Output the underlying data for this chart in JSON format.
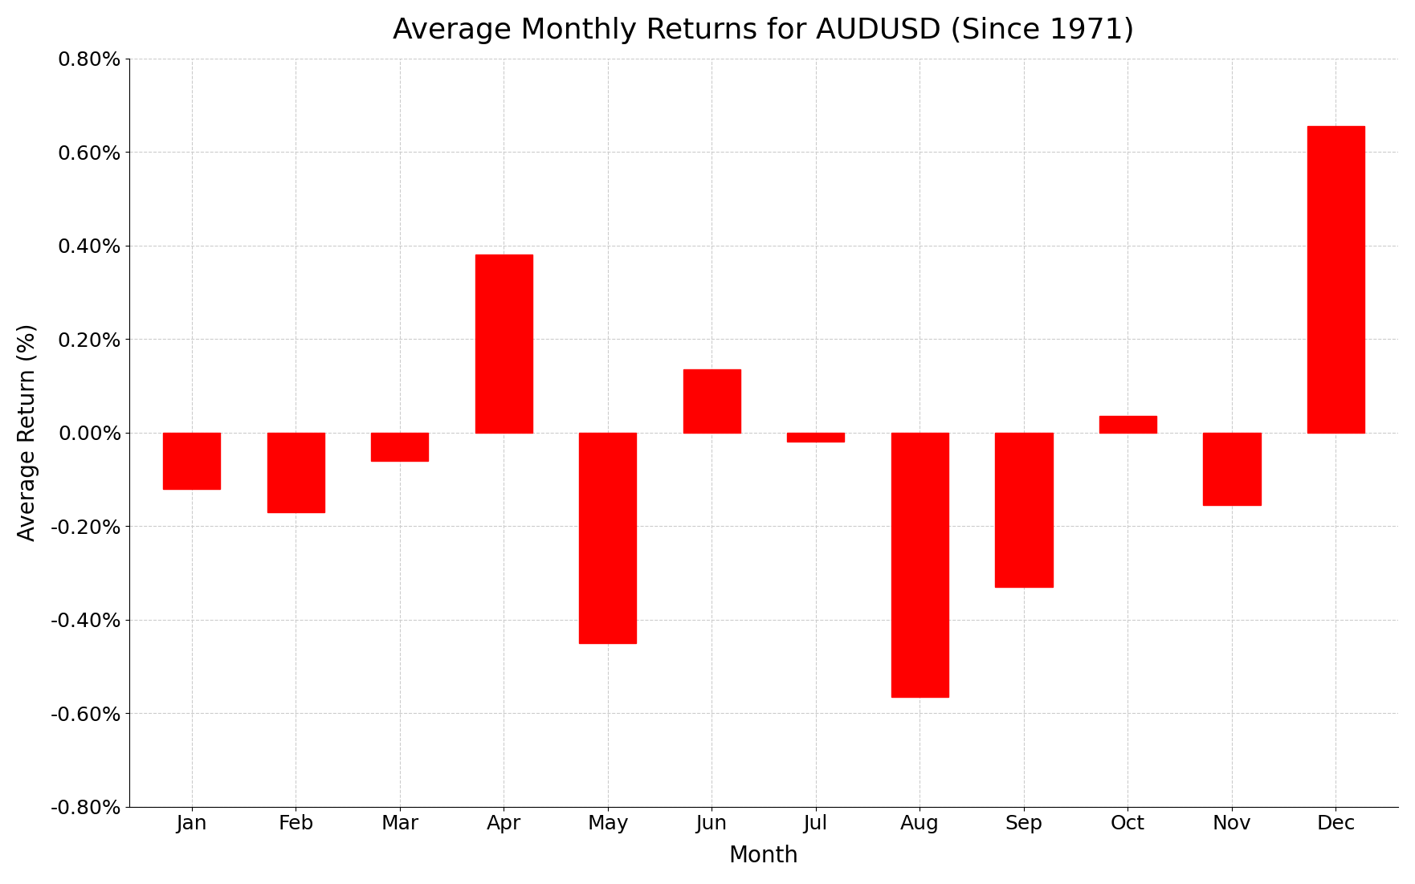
{
  "title": "Average Monthly Returns for AUDUSD (Since 1971)",
  "xlabel": "Month",
  "ylabel": "Average Return (%)",
  "months": [
    "Jan",
    "Feb",
    "Mar",
    "Apr",
    "May",
    "Jun",
    "Jul",
    "Aug",
    "Sep",
    "Oct",
    "Nov",
    "Dec"
  ],
  "values": [
    -0.0012,
    -0.0017,
    -0.0006,
    0.0038,
    -0.0045,
    0.00135,
    -0.0002,
    -0.00565,
    -0.0033,
    0.00035,
    -0.00155,
    0.00655
  ],
  "bar_color": "#ff0000",
  "bar_edge_color": "#ff0000",
  "background_color": "#ffffff",
  "grid_color": "#cccccc",
  "ylim_min": -0.008,
  "ylim_max": 0.008,
  "ytick_step": 0.002,
  "title_fontsize": 26,
  "label_fontsize": 20,
  "tick_fontsize": 18
}
